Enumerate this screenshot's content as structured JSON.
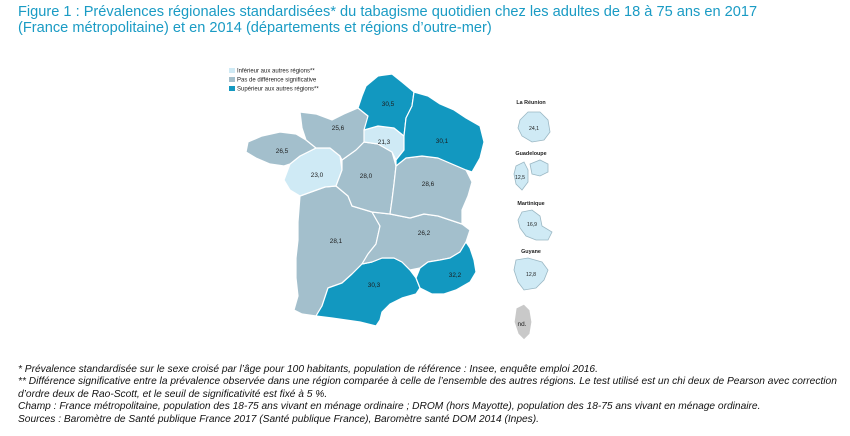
{
  "title": {
    "line1": "Figure 1 : Prévalences régionales standardisées* du tabagisme quotidien chez les adultes de 18 à 75 ans en 2017",
    "line2": "(France métropolitaine) et en 2014 (départements et régions d’outre-mer)"
  },
  "colors": {
    "inferieur": "#cfeaf5",
    "pas_de_difference": "#a3bfcc",
    "superieur": "#1298c0",
    "title": "#1a9bc4",
    "corse": "#c9c9c9"
  },
  "legend": {
    "items": [
      {
        "key": "inferieur",
        "label": "Inférieur aux autres régions**"
      },
      {
        "key": "pas_de_difference",
        "label": "Pas de différence significative"
      },
      {
        "key": "superieur",
        "label": "Supérieur aux autres régions**"
      }
    ]
  },
  "regions": [
    {
      "name": "Hauts-de-France",
      "value": "30,5",
      "category": "superieur"
    },
    {
      "name": "Normandie",
      "value": "25,6",
      "category": "pas_de_difference"
    },
    {
      "name": "Bretagne",
      "value": "26,5",
      "category": "pas_de_difference"
    },
    {
      "name": "Île-de-France",
      "value": "21,3",
      "category": "inferieur"
    },
    {
      "name": "Grand Est",
      "value": "30,1",
      "category": "superieur"
    },
    {
      "name": "Pays de la Loire",
      "value": "23,0",
      "category": "inferieur"
    },
    {
      "name": "Centre-Val de Loire",
      "value": "28,0",
      "category": "pas_de_difference"
    },
    {
      "name": "Bourgogne-Franche-Comté",
      "value": "28,6",
      "category": "pas_de_difference"
    },
    {
      "name": "Nouvelle-Aquitaine",
      "value": "28,1",
      "category": "pas_de_difference"
    },
    {
      "name": "Auvergne-Rhône-Alpes",
      "value": "26,2",
      "category": "pas_de_difference"
    },
    {
      "name": "Occitanie",
      "value": "30,3",
      "category": "superieur"
    },
    {
      "name": "Provence-Alpes-Côte d'Azur",
      "value": "32,2",
      "category": "superieur"
    },
    {
      "name": "Corse",
      "value": "nd.",
      "category": "nd"
    }
  ],
  "drom": [
    {
      "name": "La Réunion",
      "value": "24,1",
      "category": "inferieur"
    },
    {
      "name": "Guadeloupe",
      "value": "12,5",
      "category": "inferieur"
    },
    {
      "name": "Martinique",
      "value": "16,9",
      "category": "inferieur"
    },
    {
      "name": "Guyane",
      "value": "12,8",
      "category": "inferieur"
    }
  ],
  "footnotes": [
    "* Prévalence standardisée sur le sexe croisé par l’âge pour 100 habitants, population de référence : Insee, enquête emploi 2016.",
    "** Différence significative entre la prévalence observée dans une région comparée à celle de l’ensemble des autres régions. Le test utilisé est un chi deux de Pearson avec correction d’ordre deux de Rao-Scott, et le seuil de significativité est fixé à 5 %.",
    "Champ : France métropolitaine, population des 18-75 ans vivant en ménage ordinaire ; DROM (hors Mayotte), population des 18-75 ans vivant en ménage ordinaire.",
    "Sources : Baromètre de Santé publique France 2017 (Santé publique France), Baromètre santé DOM 2014 (Inpes)."
  ]
}
